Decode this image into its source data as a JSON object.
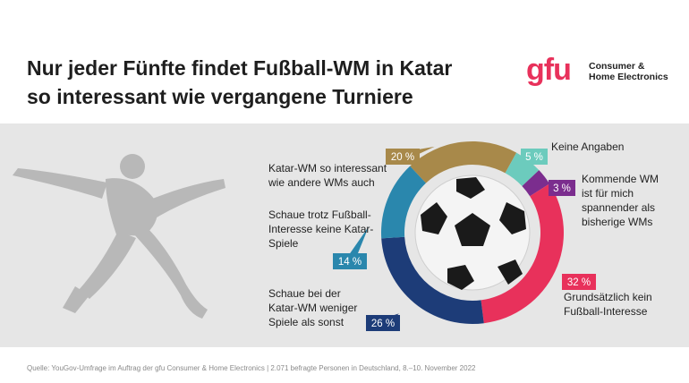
{
  "title_line1": "Nur jeder Fünfte findet Fußball-WM in Katar",
  "title_line2": "so interessant wie vergangene Turniere",
  "logo": {
    "mark": "gfu",
    "line1": "Consumer &",
    "line2": "Home Electronics"
  },
  "source": "Quelle: YouGov-Umfrage im Auftrag der gfu Consumer & Home Electronics | 2.071 befragte Personen in Deutschland, 8.–10. November 2022",
  "chart_data": {
    "type": "pie",
    "variant": "donut",
    "unit": "%",
    "slices": [
      {
        "label": "Katar-WM so interessant\nwie andere WMs auch",
        "value": 20,
        "value_label": "20 %",
        "color": "#a8894a"
      },
      {
        "label": "Keine Angaben",
        "value": 5,
        "value_label": "5 %",
        "color": "#6ccbbd"
      },
      {
        "label": "Kommende WM\nist für mich\nspannender als\nbisherige WMs",
        "value": 3,
        "value_label": "3 %",
        "color": "#7b2d8e"
      },
      {
        "label": "Grundsätzlich kein\nFußball-Interesse",
        "value": 32,
        "value_label": "32 %",
        "color": "#e8315b"
      },
      {
        "label": "Schaue bei der\nKatar-WM weniger\nSpiele als sonst",
        "value": 26,
        "value_label": "26 %",
        "color": "#1d3c78"
      },
      {
        "label": "Schaue trotz Fußball-\nInteresse keine Katar-\nSpiele",
        "value": 14,
        "value_label": "14 %",
        "color": "#2a87ad"
      }
    ]
  }
}
